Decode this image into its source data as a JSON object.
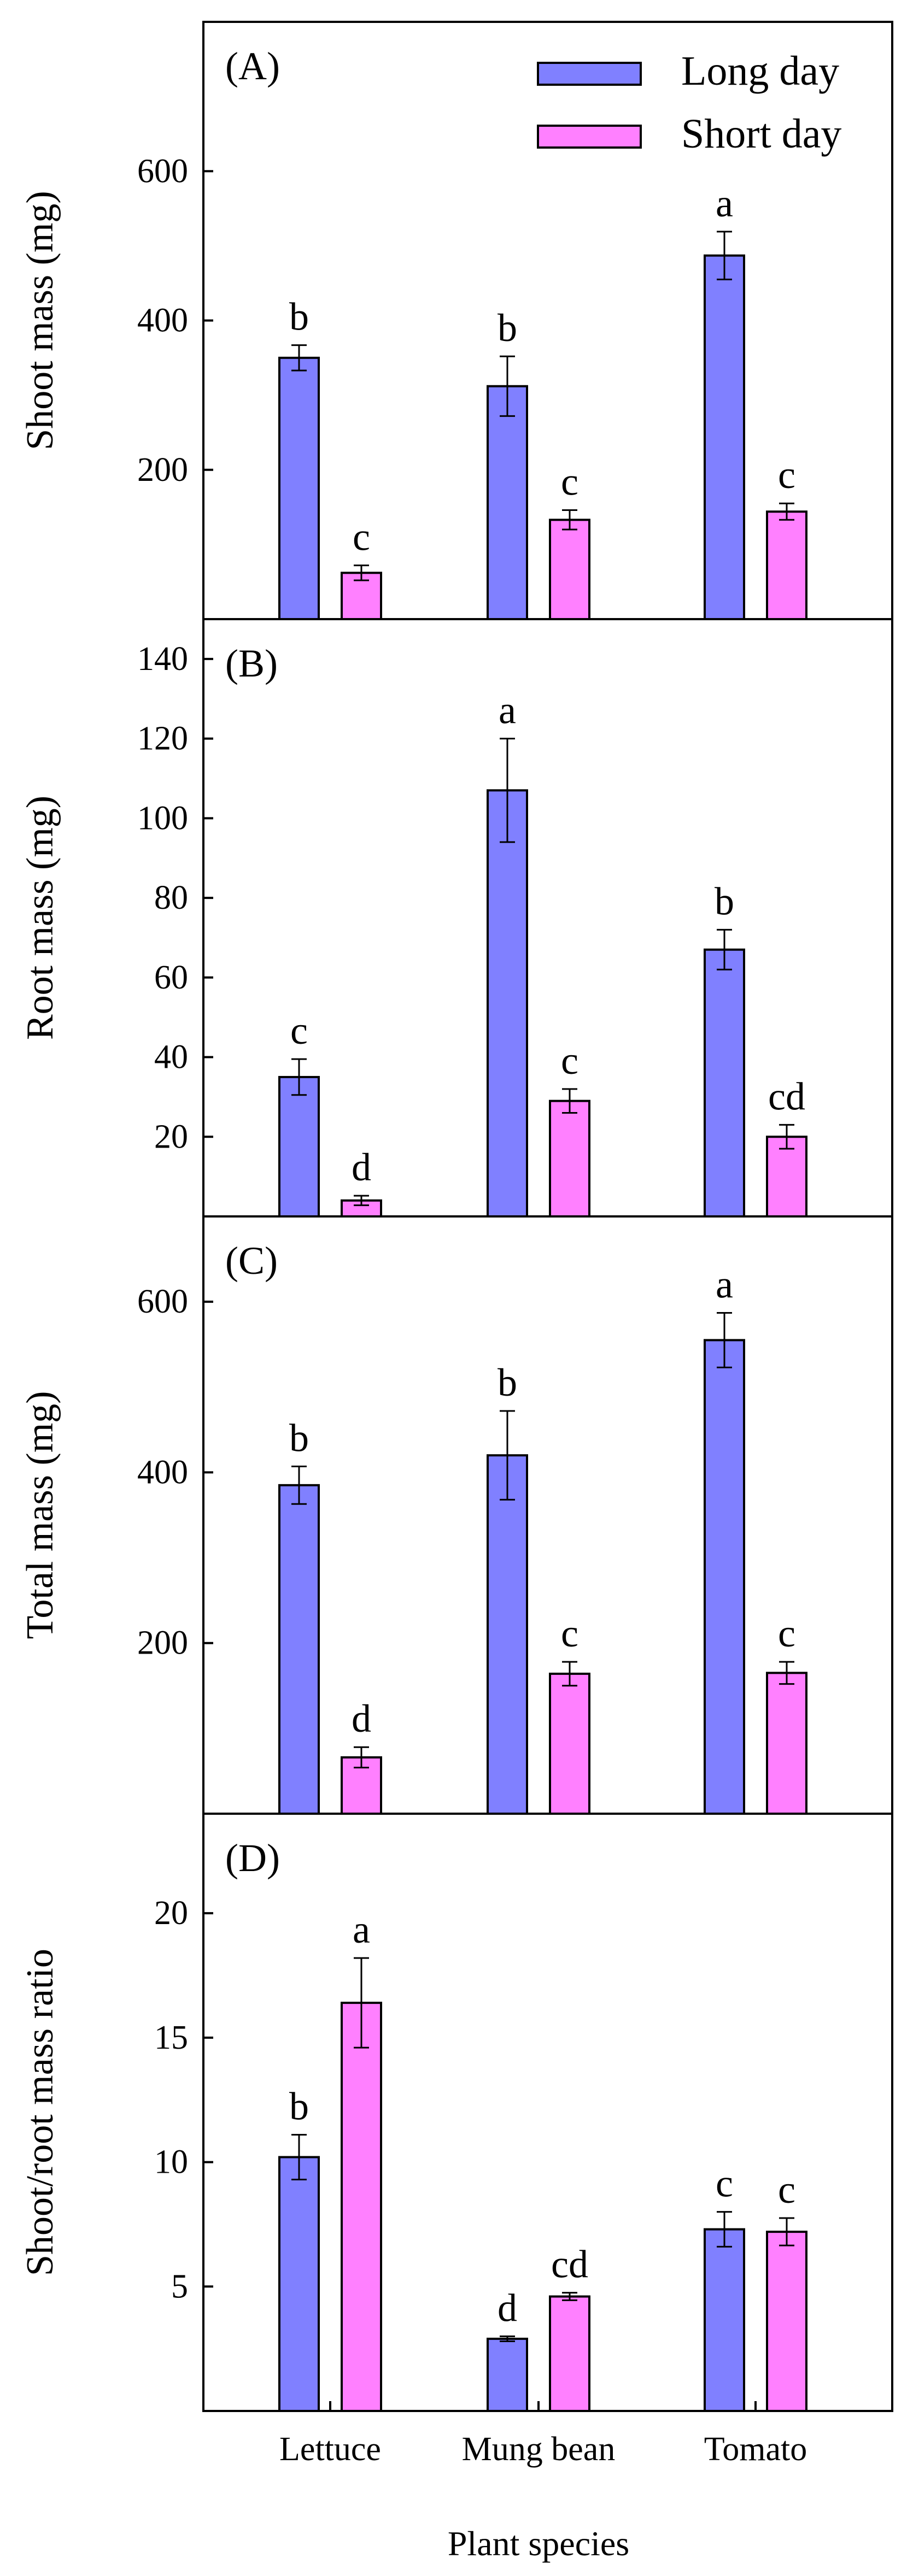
{
  "figure": {
    "xlabel": "Plant species",
    "categories": [
      "Lettuce",
      "Mung bean",
      "Tomato"
    ],
    "legend": {
      "placement": "top-right of panel A",
      "entries": [
        {
          "name": "Long day",
          "color": "#8080ff"
        },
        {
          "name": "Short day",
          "color": "#ff80ff"
        }
      ]
    },
    "colors": {
      "long_day": "#8080ff",
      "short_day": "#ff80ff",
      "axis": "#000000"
    }
  },
  "chart_data": [
    {
      "type": "bar",
      "panel_label": "(A)",
      "ylabel": "Shoot mass (mg)",
      "ylim": [
        0,
        800
      ],
      "yticks": [
        200,
        400,
        600
      ],
      "categories": [
        "Lettuce",
        "Mung bean",
        "Tomato"
      ],
      "series": [
        {
          "name": "Long day",
          "values": [
            350,
            312,
            487
          ],
          "errors": [
            17,
            40,
            32
          ],
          "letters": [
            "b",
            "b",
            "a"
          ]
        },
        {
          "name": "Short day",
          "values": [
            62,
            133,
            144
          ],
          "errors": [
            10,
            13,
            11
          ],
          "letters": [
            "c",
            "c",
            "c"
          ]
        }
      ]
    },
    {
      "type": "bar",
      "panel_label": "(B)",
      "ylabel": "Root mass (mg)",
      "ylim": [
        0,
        150
      ],
      "yticks": [
        20,
        40,
        60,
        80,
        100,
        120,
        140
      ],
      "categories": [
        "Lettuce",
        "Mung bean",
        "Tomato"
      ],
      "series": [
        {
          "name": "Long day",
          "values": [
            35,
            107,
            67
          ],
          "errors": [
            4.5,
            13,
            5
          ],
          "letters": [
            "c",
            "a",
            "b"
          ]
        },
        {
          "name": "Short day",
          "values": [
            4,
            29,
            20
          ],
          "errors": [
            1.2,
            3,
            3
          ],
          "letters": [
            "d",
            "c",
            "cd"
          ]
        }
      ]
    },
    {
      "type": "bar",
      "panel_label": "(C)",
      "ylabel": "Total mass (mg)",
      "ylim": [
        0,
        700
      ],
      "yticks": [
        200,
        400,
        600
      ],
      "categories": [
        "Lettuce",
        "Mung bean",
        "Tomato"
      ],
      "series": [
        {
          "name": "Long day",
          "values": [
            385,
            420,
            555
          ],
          "errors": [
            22,
            52,
            32
          ],
          "letters": [
            "b",
            "b",
            "a"
          ]
        },
        {
          "name": "Short day",
          "values": [
            66,
            164,
            165
          ],
          "errors": [
            12,
            14,
            13
          ],
          "letters": [
            "d",
            "c",
            "c"
          ]
        }
      ]
    },
    {
      "type": "bar",
      "panel_label": "(D)",
      "ylabel": "Shoot/root mass ratio",
      "ylim": [
        0,
        24
      ],
      "yticks": [
        5,
        10,
        15,
        20
      ],
      "categories": [
        "Lettuce",
        "Mung bean",
        "Tomato"
      ],
      "series": [
        {
          "name": "Long day",
          "values": [
            10.2,
            2.9,
            7.3
          ],
          "errors": [
            0.9,
            0.1,
            0.7
          ],
          "letters": [
            "b",
            "d",
            "c"
          ]
        },
        {
          "name": "Short day",
          "values": [
            16.4,
            4.6,
            7.2
          ],
          "errors": [
            1.8,
            0.15,
            0.55
          ],
          "letters": [
            "a",
            "cd",
            "c"
          ]
        }
      ]
    }
  ]
}
